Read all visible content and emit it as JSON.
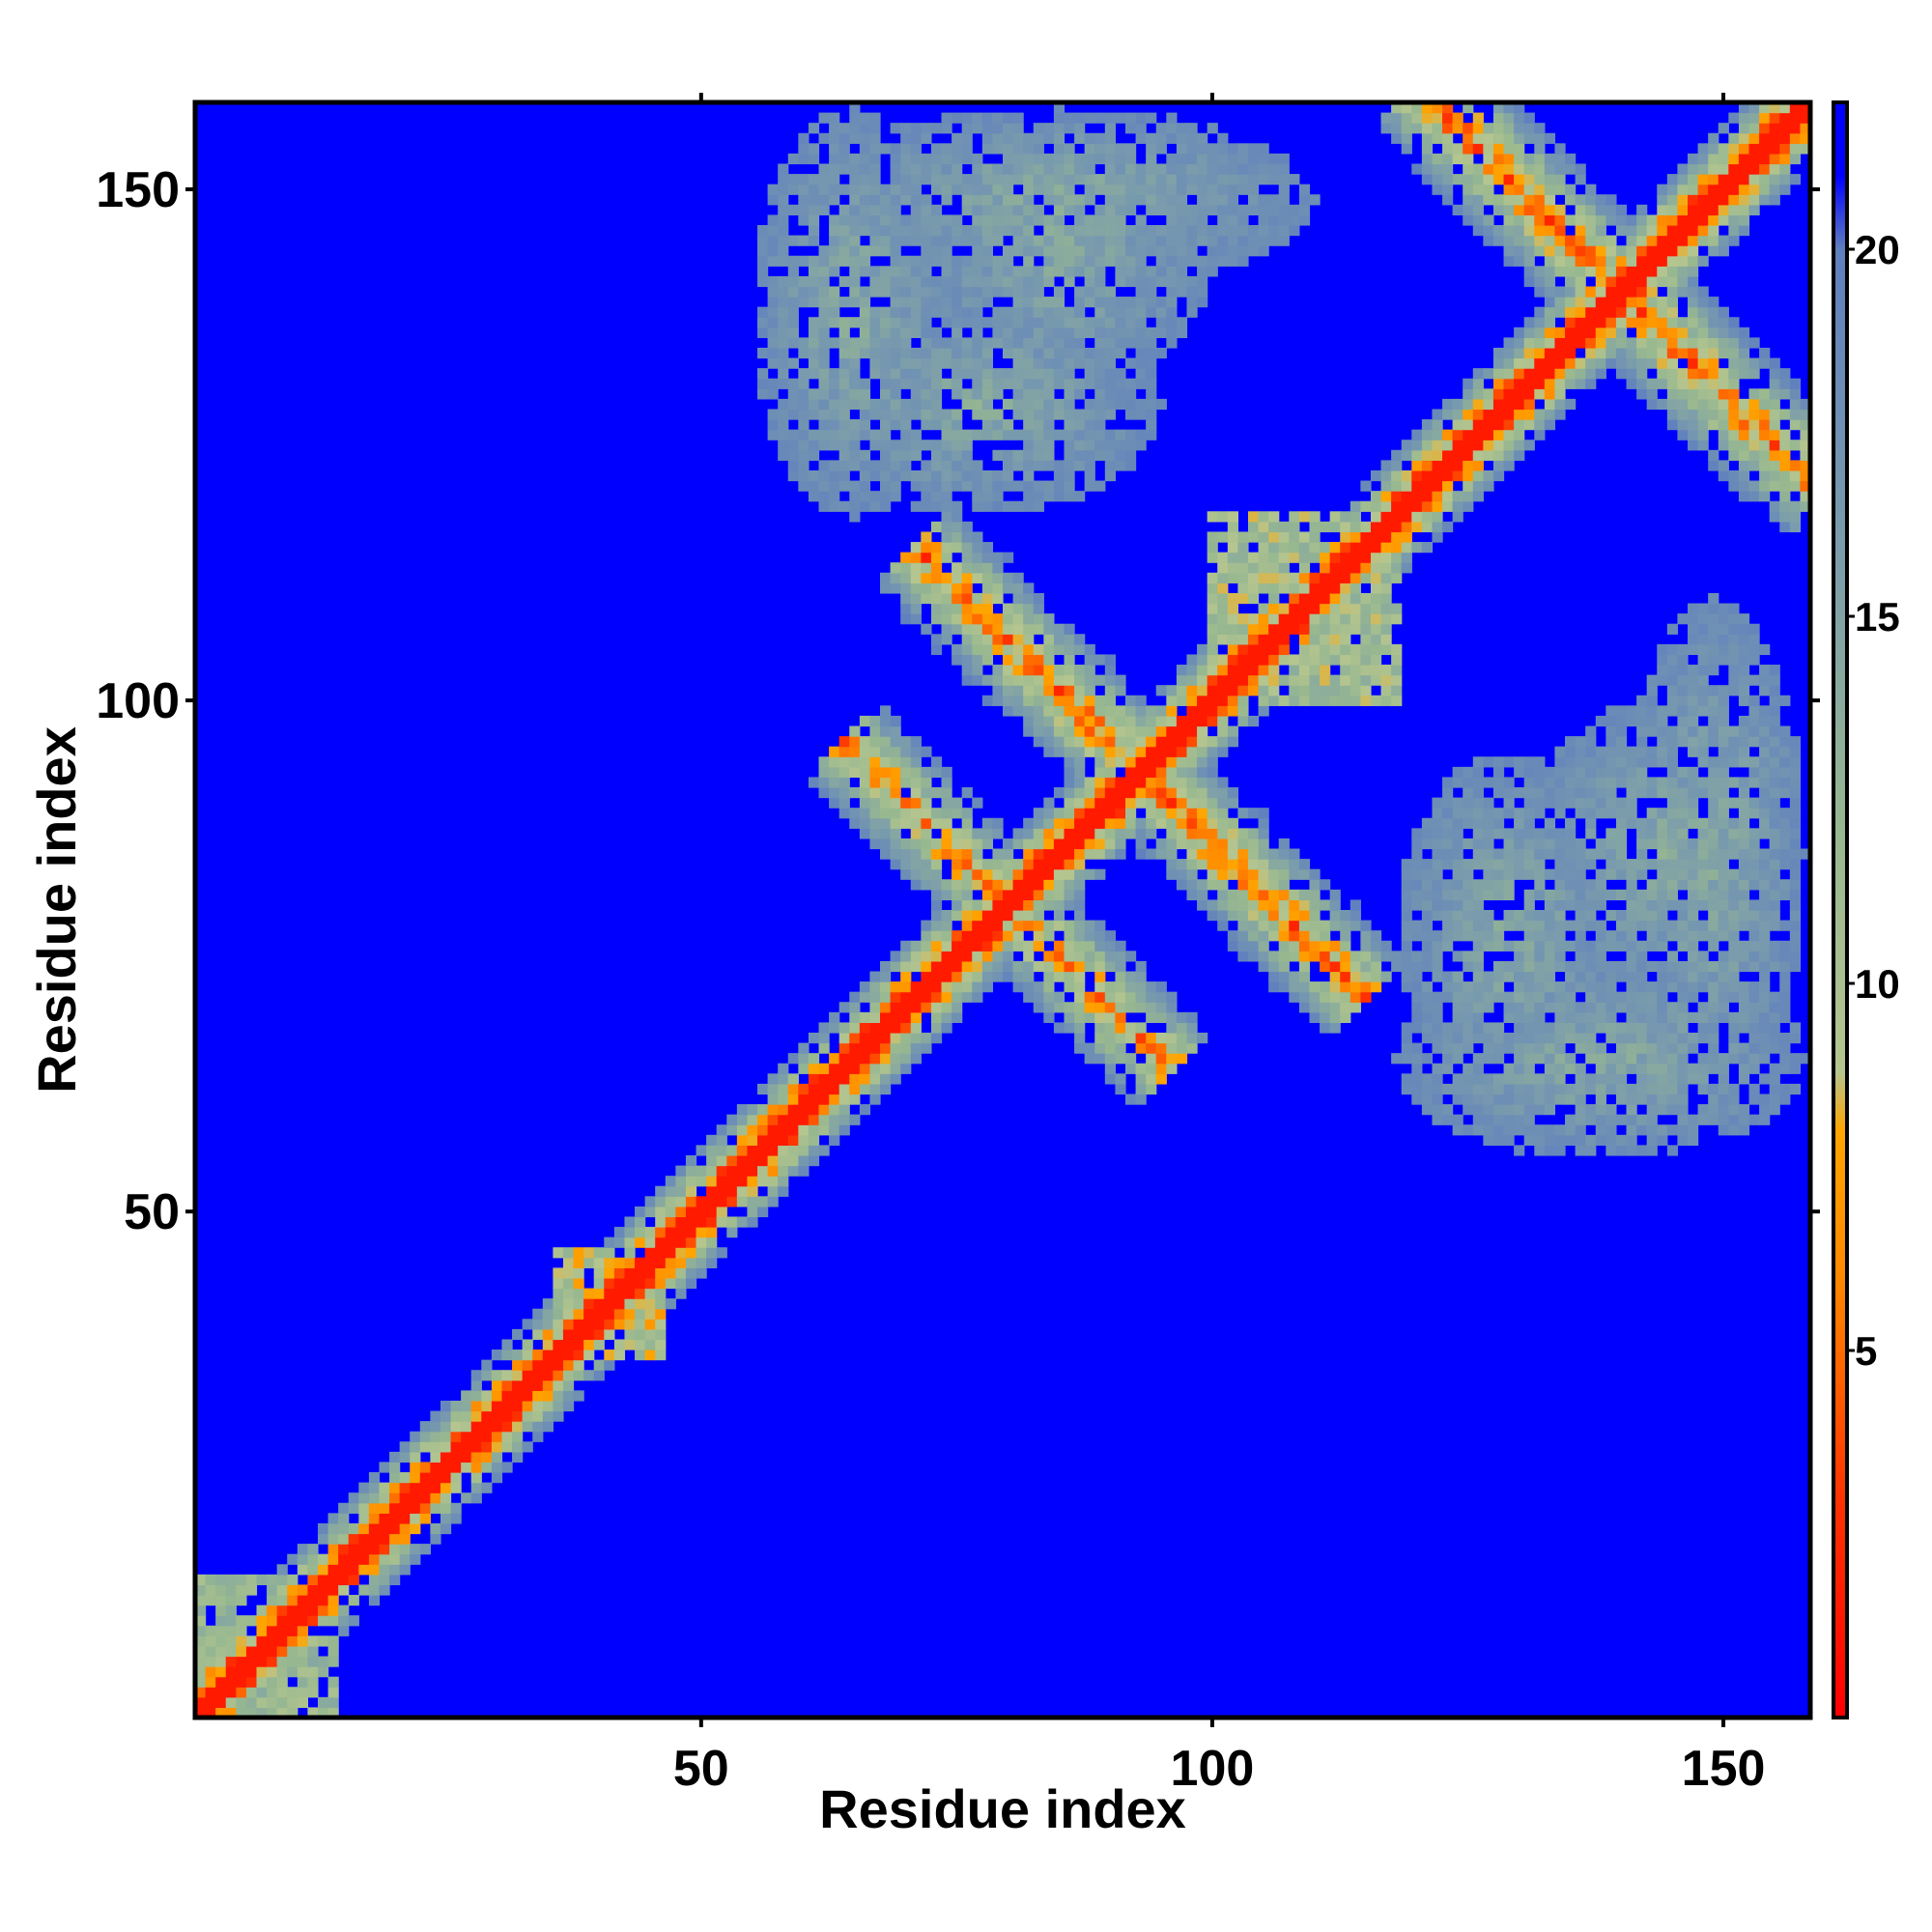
{
  "chart_data": {
    "type": "heatmap",
    "title": "",
    "xlabel": "Residue index",
    "ylabel": "Residue index",
    "xlim": [
      1,
      158
    ],
    "ylim": [
      1,
      158
    ],
    "x_ticks": [
      50,
      100,
      150
    ],
    "y_ticks": [
      50,
      100,
      150
    ],
    "colorbar": {
      "range": [
        0,
        22
      ],
      "ticks": [
        5,
        10,
        15,
        20
      ],
      "stops": [
        {
          "value": 0,
          "color": "#ff0000"
        },
        {
          "value": 3,
          "color": "#ff3300"
        },
        {
          "value": 6,
          "color": "#ff8800"
        },
        {
          "value": 8,
          "color": "#ffa500"
        },
        {
          "value": 8.8,
          "color": "#b5c58f"
        },
        {
          "value": 12,
          "color": "#98b890"
        },
        {
          "value": 16,
          "color": "#7a9cac"
        },
        {
          "value": 20,
          "color": "#5f7fbf"
        },
        {
          "value": 21,
          "color": "#0000ff"
        }
      ]
    },
    "description_values": {
      "diagonal_value": 1.5,
      "background_value": 22,
      "cutoff": 21
    },
    "contact_bands": [
      {
        "type": "diagonal",
        "from": 1,
        "to": 158,
        "width": 3,
        "strength": 1.0
      },
      {
        "type": "anti",
        "center": [
          93,
          93
        ],
        "length": 22,
        "width": 4,
        "strength": 0.75
      },
      {
        "type": "anti",
        "center": [
          80,
          80
        ],
        "length": 16,
        "width": 4,
        "strength": 0.7
      },
      {
        "type": "anti",
        "center": [
          140,
          140
        ],
        "length": 20,
        "width": 4,
        "strength": 0.75
      },
      {
        "type": "parallel",
        "from": [
          125,
          155
        ],
        "to": [
          155,
          125
        ],
        "width": 3,
        "strength": 0.75
      },
      {
        "type": "block",
        "x": [
          36,
          46
        ],
        "y": [
          36,
          46
        ],
        "strength": 0.55
      },
      {
        "type": "block",
        "x": [
          100,
          118
        ],
        "y": [
          100,
          118
        ],
        "strength": 0.5
      },
      {
        "type": "block",
        "x": [
          1,
          14
        ],
        "y": [
          1,
          14
        ],
        "strength": 0.45
      },
      {
        "type": "cloud",
        "x": [
          55,
          75
        ],
        "y": [
          118,
          158
        ],
        "strength": 0.35
      },
      {
        "type": "cloud",
        "x": [
          70,
          100
        ],
        "y": [
          130,
          158
        ],
        "strength": 0.35
      },
      {
        "type": "cloud",
        "x": [
          118,
          140
        ],
        "y": [
          60,
          95
        ],
        "strength": 0.35
      },
      {
        "type": "cloud",
        "x": [
          140,
          158
        ],
        "y": [
          60,
          110
        ],
        "strength": 0.35
      }
    ]
  }
}
